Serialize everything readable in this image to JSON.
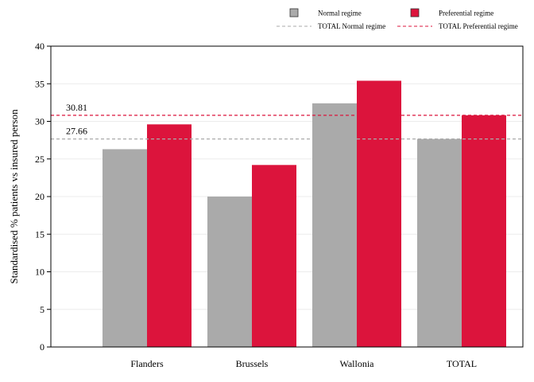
{
  "chart_data": {
    "type": "bar",
    "categories": [
      "Flanders",
      "Brussels",
      "Wallonia",
      "TOTAL"
    ],
    "series": [
      {
        "name": "Normal regime",
        "values": [
          26.3,
          20.0,
          32.4,
          27.66
        ],
        "color": "#aaaaaa"
      },
      {
        "name": "Preferential regime",
        "values": [
          29.6,
          24.2,
          35.4,
          30.81
        ],
        "color": "#dc143c"
      }
    ],
    "reference_lines": [
      {
        "name": "TOTAL Normal regime",
        "value": 27.66,
        "label": "27.66",
        "color": "#aaaaaa",
        "style": "dashed"
      },
      {
        "name": "TOTAL Preferential regime",
        "value": 30.81,
        "label": "30.81",
        "color": "#dc143c",
        "style": "dashed"
      }
    ],
    "title": "",
    "xlabel": "",
    "ylabel": "Standardised % patients vs insured person",
    "ylim": [
      0,
      40
    ],
    "yticks": [
      0,
      5,
      10,
      15,
      20,
      25,
      30,
      35,
      40
    ],
    "grid": true,
    "legend_position": "top"
  }
}
